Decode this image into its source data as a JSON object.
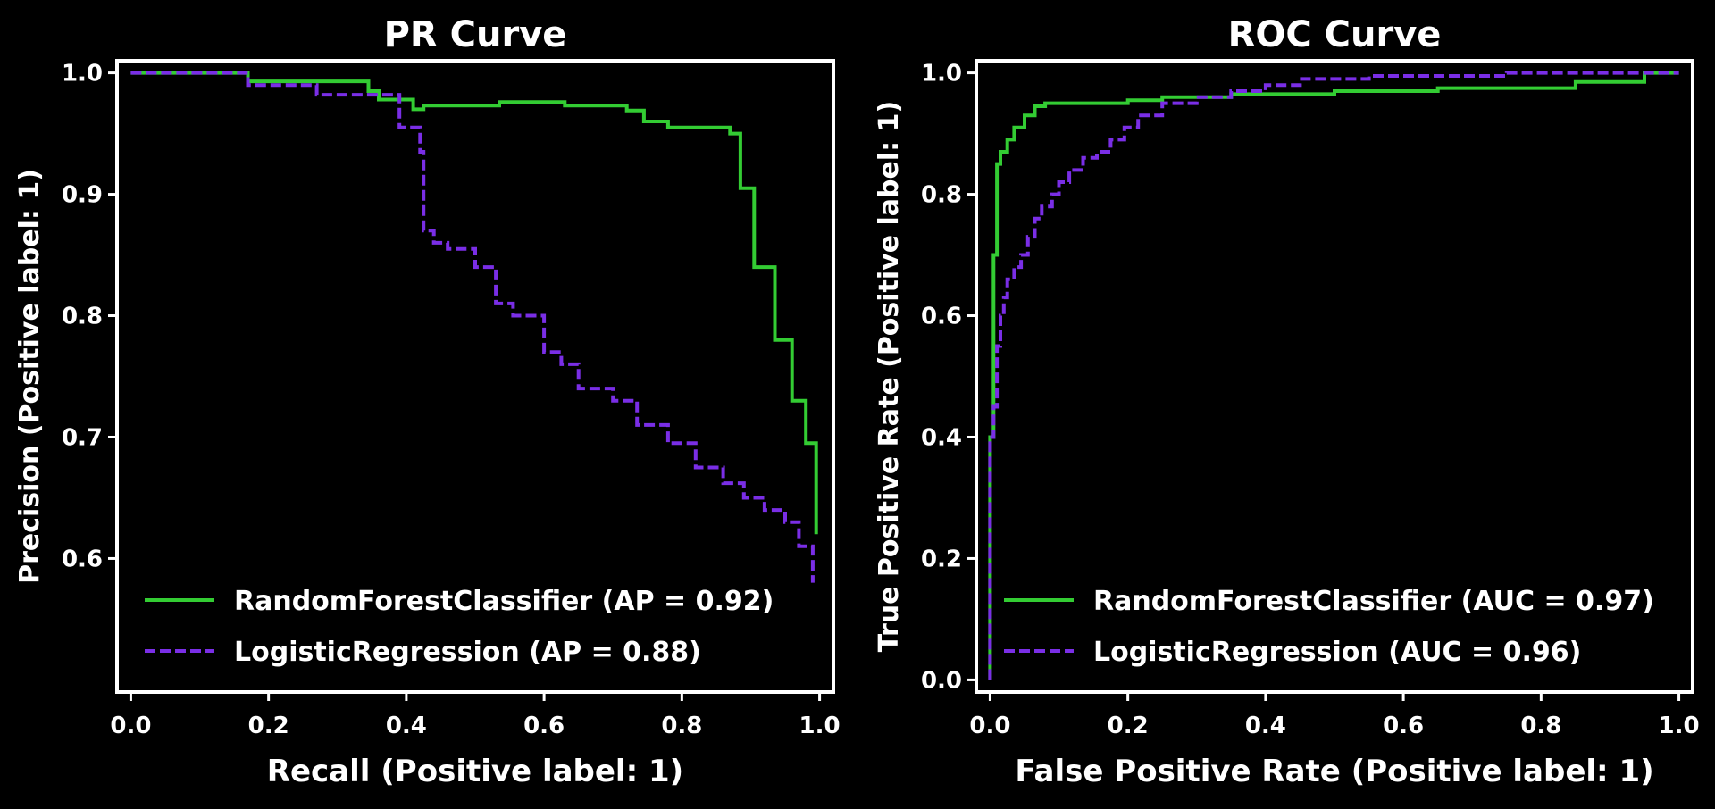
{
  "chart_data": [
    {
      "type": "line",
      "title": "PR Curve",
      "xlabel": "Recall (Positive label: 1)",
      "ylabel": "Precision (Positive label: 1)",
      "xlim": [
        0.0,
        1.0
      ],
      "ylim": [
        0.5,
        1.0
      ],
      "xticks": [
        "0.0",
        "0.2",
        "0.4",
        "0.6",
        "0.8",
        "1.0"
      ],
      "yticks": [
        "0.6",
        "0.7",
        "0.8",
        "0.9",
        "1.0"
      ],
      "legend_position": "lower-left",
      "grid": false,
      "series": [
        {
          "name": "RandomForestClassifier (AP = 0.92)",
          "color": "#33cc33",
          "dash": "solid",
          "x": [
            0.0,
            0.17,
            0.17,
            0.345,
            0.345,
            0.36,
            0.36,
            0.41,
            0.41,
            0.425,
            0.425,
            0.535,
            0.535,
            0.63,
            0.63,
            0.72,
            0.72,
            0.745,
            0.745,
            0.78,
            0.78,
            0.87,
            0.87,
            0.885,
            0.885,
            0.905,
            0.905,
            0.935,
            0.935,
            0.96,
            0.96,
            0.98,
            0.98,
            0.995,
            0.995
          ],
          "y": [
            1.0,
            1.0,
            0.993,
            0.993,
            0.985,
            0.985,
            0.978,
            0.978,
            0.97,
            0.97,
            0.973,
            0.973,
            0.976,
            0.976,
            0.973,
            0.973,
            0.969,
            0.969,
            0.96,
            0.96,
            0.955,
            0.955,
            0.95,
            0.95,
            0.905,
            0.905,
            0.84,
            0.84,
            0.78,
            0.78,
            0.73,
            0.73,
            0.695,
            0.695,
            0.62
          ]
        },
        {
          "name": "LogisticRegression (AP = 0.88)",
          "color": "#7a2ee6",
          "dash": "dashed",
          "x": [
            0.0,
            0.17,
            0.17,
            0.27,
            0.27,
            0.39,
            0.39,
            0.42,
            0.42,
            0.425,
            0.425,
            0.44,
            0.44,
            0.46,
            0.46,
            0.5,
            0.5,
            0.53,
            0.53,
            0.555,
            0.555,
            0.6,
            0.6,
            0.625,
            0.625,
            0.65,
            0.65,
            0.7,
            0.7,
            0.735,
            0.735,
            0.78,
            0.78,
            0.82,
            0.82,
            0.86,
            0.86,
            0.89,
            0.89,
            0.92,
            0.92,
            0.95,
            0.95,
            0.97,
            0.97,
            0.99,
            0.99
          ],
          "y": [
            1.0,
            1.0,
            0.99,
            0.99,
            0.982,
            0.982,
            0.955,
            0.955,
            0.935,
            0.935,
            0.87,
            0.87,
            0.86,
            0.86,
            0.855,
            0.855,
            0.84,
            0.84,
            0.81,
            0.81,
            0.8,
            0.8,
            0.77,
            0.77,
            0.76,
            0.76,
            0.74,
            0.74,
            0.73,
            0.73,
            0.71,
            0.71,
            0.695,
            0.695,
            0.675,
            0.675,
            0.662,
            0.662,
            0.65,
            0.65,
            0.64,
            0.64,
            0.63,
            0.63,
            0.61,
            0.61,
            0.58
          ]
        }
      ]
    },
    {
      "type": "line",
      "title": "ROC Curve",
      "xlabel": "False Positive Rate (Positive label: 1)",
      "ylabel": "True Positive Rate (Positive label: 1)",
      "xlim": [
        0.0,
        1.0
      ],
      "ylim": [
        0.0,
        1.0
      ],
      "xticks": [
        "0.0",
        "0.2",
        "0.4",
        "0.6",
        "0.8",
        "1.0"
      ],
      "yticks": [
        "0.0",
        "0.2",
        "0.4",
        "0.6",
        "0.8",
        "1.0"
      ],
      "legend_position": "lower-right",
      "grid": false,
      "series": [
        {
          "name": "RandomForestClassifier (AUC = 0.97)",
          "color": "#33cc33",
          "dash": "solid",
          "x": [
            0.0,
            0.0,
            0.005,
            0.005,
            0.01,
            0.01,
            0.015,
            0.015,
            0.025,
            0.025,
            0.035,
            0.035,
            0.05,
            0.05,
            0.065,
            0.065,
            0.08,
            0.08,
            0.2,
            0.2,
            0.25,
            0.25,
            0.35,
            0.35,
            0.5,
            0.5,
            0.65,
            0.65,
            0.85,
            0.85,
            0.95,
            0.95,
            1.0
          ],
          "y": [
            0.0,
            0.4,
            0.4,
            0.7,
            0.7,
            0.85,
            0.85,
            0.87,
            0.87,
            0.89,
            0.89,
            0.91,
            0.91,
            0.93,
            0.93,
            0.945,
            0.945,
            0.95,
            0.95,
            0.955,
            0.955,
            0.96,
            0.96,
            0.965,
            0.965,
            0.97,
            0.97,
            0.975,
            0.975,
            0.985,
            0.985,
            1.0,
            1.0
          ]
        },
        {
          "name": "LogisticRegression (AUC = 0.96)",
          "color": "#7a2ee6",
          "dash": "dashed",
          "x": [
            0.0,
            0.0,
            0.005,
            0.005,
            0.01,
            0.01,
            0.015,
            0.015,
            0.02,
            0.02,
            0.025,
            0.025,
            0.035,
            0.035,
            0.045,
            0.045,
            0.055,
            0.055,
            0.065,
            0.065,
            0.075,
            0.075,
            0.09,
            0.09,
            0.1,
            0.1,
            0.115,
            0.115,
            0.135,
            0.135,
            0.155,
            0.155,
            0.175,
            0.175,
            0.195,
            0.195,
            0.215,
            0.215,
            0.25,
            0.25,
            0.3,
            0.3,
            0.35,
            0.35,
            0.4,
            0.4,
            0.45,
            0.45,
            0.55,
            0.55,
            0.75,
            0.75,
            1.0
          ],
          "y": [
            0.0,
            0.4,
            0.4,
            0.45,
            0.45,
            0.55,
            0.55,
            0.6,
            0.6,
            0.63,
            0.63,
            0.66,
            0.66,
            0.68,
            0.68,
            0.7,
            0.7,
            0.73,
            0.73,
            0.76,
            0.76,
            0.78,
            0.78,
            0.8,
            0.8,
            0.82,
            0.82,
            0.84,
            0.84,
            0.86,
            0.86,
            0.87,
            0.87,
            0.89,
            0.89,
            0.91,
            0.91,
            0.93,
            0.93,
            0.95,
            0.95,
            0.96,
            0.96,
            0.97,
            0.97,
            0.98,
            0.98,
            0.99,
            0.99,
            0.995,
            0.995,
            1.0,
            1.0
          ]
        }
      ]
    }
  ]
}
